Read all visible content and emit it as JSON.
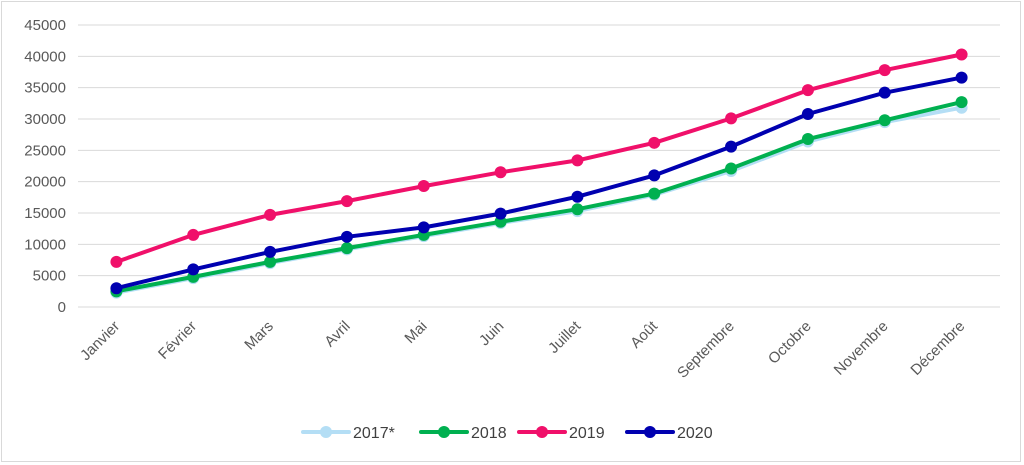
{
  "chart_data": {
    "type": "line",
    "title": "",
    "xlabel": "",
    "ylabel": "",
    "ylim": [
      0,
      45000
    ],
    "yticks": [
      0,
      5000,
      10000,
      15000,
      20000,
      25000,
      30000,
      35000,
      40000,
      45000
    ],
    "grid": true,
    "legend_position": "bottom",
    "categories": [
      "Janvier",
      "Février",
      "Mars",
      "Avril",
      "Mai",
      "Juin",
      "Juillet",
      "Août",
      "Septembre",
      "Octobre",
      "Novembre",
      "Décembre"
    ],
    "series": [
      {
        "name": "2017*",
        "color": "#b4def5",
        "values": [
          2300,
          4600,
          7000,
          9200,
          11300,
          13400,
          15300,
          17900,
          21700,
          26400,
          29500,
          31800
        ]
      },
      {
        "name": "2018",
        "color": "#00b050",
        "values": [
          2500,
          4800,
          7200,
          9400,
          11500,
          13600,
          15600,
          18100,
          22100,
          26800,
          29800,
          32700
        ]
      },
      {
        "name": "2019",
        "color": "#f0106a",
        "values": [
          7200,
          11500,
          14700,
          16900,
          19300,
          21500,
          23400,
          26200,
          30100,
          34600,
          37800,
          40300
        ]
      },
      {
        "name": "2020",
        "color": "#0000b0",
        "values": [
          3000,
          6000,
          8800,
          11200,
          12700,
          14900,
          17600,
          21000,
          25600,
          30800,
          34200,
          36600
        ]
      }
    ]
  }
}
